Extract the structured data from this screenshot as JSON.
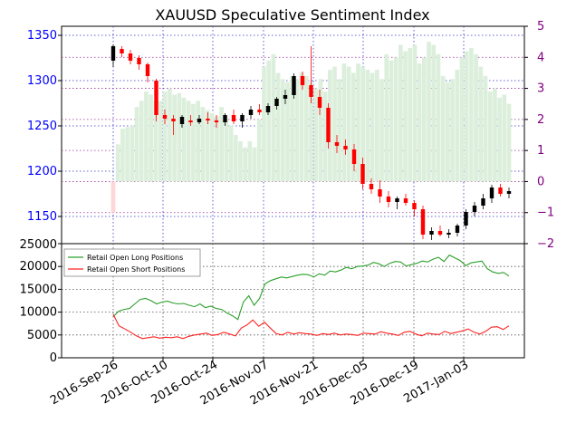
{
  "chart_data": [
    {
      "type": "candlestick",
      "title": "XAUUSD Speculative Sentiment Index",
      "left_axis": {
        "ticks": [
          "1150",
          "1200",
          "1250",
          "1300",
          "1350"
        ],
        "ylim": [
          1120,
          1360
        ],
        "color": "#0000ff"
      },
      "right_axis": {
        "ticks": [
          "−2",
          "−1",
          "0",
          "1",
          "2",
          "3",
          "4",
          "5"
        ],
        "ylim": [
          -2,
          5
        ],
        "color": "#800080"
      },
      "grid": "dotted",
      "ssi_bars": {
        "color_positive": "#dcefdc",
        "color_negative": "#ffd6d6",
        "values": [
          -1.0,
          1.2,
          1.7,
          1.75,
          1.8,
          2.4,
          2.6,
          2.9,
          2.8,
          2.6,
          2.6,
          2.9,
          3.0,
          2.8,
          2.85,
          2.7,
          2.6,
          2.5,
          2.6,
          2.4,
          2.3,
          2.2,
          2.1,
          2.4,
          2.0,
          1.8,
          1.5,
          1.3,
          1.1,
          1.3,
          1.1,
          2.0,
          3.7,
          3.9,
          4.1,
          3.5,
          3.3,
          3.2,
          3.4,
          3.3,
          3.5,
          3.4,
          3.2,
          3.0,
          3.3,
          2.9,
          3.6,
          3.7,
          3.3,
          3.8,
          3.7,
          3.5,
          3.8,
          3.7,
          3.6,
          3.5,
          3.6,
          3.3,
          4.1,
          3.9,
          4.0,
          4.4,
          4.2,
          4.3,
          4.4,
          3.8,
          4.0,
          4.5,
          4.4,
          4.1,
          3.4,
          3.2,
          3.3,
          3.6,
          4.0,
          4.2,
          4.3,
          4.1,
          3.7,
          3.4,
          2.9,
          3.0,
          2.7,
          2.8,
          2.5
        ]
      },
      "price_ohlc": [
        [
          1322,
          1340,
          1315,
          1338
        ],
        [
          1335,
          1338,
          1326,
          1330
        ],
        [
          1330,
          1334,
          1318,
          1322
        ],
        [
          1325,
          1328,
          1312,
          1318
        ],
        [
          1318,
          1320,
          1298,
          1305
        ],
        [
          1300,
          1302,
          1255,
          1262
        ],
        [
          1262,
          1268,
          1252,
          1258
        ],
        [
          1258,
          1262,
          1240,
          1255
        ],
        [
          1252,
          1262,
          1248,
          1260
        ],
        [
          1256,
          1262,
          1250,
          1254
        ],
        [
          1254,
          1262,
          1252,
          1258
        ],
        [
          1258,
          1265,
          1252,
          1256
        ],
        [
          1256,
          1262,
          1248,
          1254
        ],
        [
          1254,
          1264,
          1250,
          1262
        ],
        [
          1262,
          1268,
          1252,
          1255
        ],
        [
          1255,
          1264,
          1248,
          1262
        ],
        [
          1262,
          1272,
          1258,
          1268
        ],
        [
          1268,
          1274,
          1262,
          1265
        ],
        [
          1265,
          1275,
          1262,
          1272
        ],
        [
          1272,
          1282,
          1268,
          1280
        ],
        [
          1280,
          1290,
          1274,
          1284
        ],
        [
          1284,
          1308,
          1280,
          1305
        ],
        [
          1305,
          1310,
          1290,
          1295
        ],
        [
          1295,
          1338,
          1275,
          1282
        ],
        [
          1282,
          1290,
          1262,
          1270
        ],
        [
          1270,
          1275,
          1225,
          1232
        ],
        [
          1232,
          1240,
          1220,
          1228
        ],
        [
          1228,
          1235,
          1218,
          1224
        ],
        [
          1224,
          1230,
          1200,
          1208
        ],
        [
          1208,
          1215,
          1180,
          1186
        ],
        [
          1186,
          1192,
          1175,
          1180
        ],
        [
          1180,
          1190,
          1165,
          1172
        ],
        [
          1172,
          1178,
          1160,
          1166
        ],
        [
          1166,
          1172,
          1158,
          1170
        ],
        [
          1170,
          1175,
          1162,
          1165
        ],
        [
          1165,
          1168,
          1150,
          1158
        ],
        [
          1158,
          1162,
          1125,
          1130
        ],
        [
          1130,
          1138,
          1124,
          1134
        ],
        [
          1134,
          1140,
          1128,
          1130
        ],
        [
          1130,
          1136,
          1126,
          1132
        ],
        [
          1132,
          1142,
          1128,
          1140
        ],
        [
          1140,
          1158,
          1136,
          1155
        ],
        [
          1155,
          1166,
          1150,
          1162
        ],
        [
          1162,
          1175,
          1158,
          1170
        ],
        [
          1170,
          1185,
          1165,
          1182
        ],
        [
          1182,
          1186,
          1172,
          1175
        ],
        [
          1175,
          1182,
          1170,
          1178
        ]
      ]
    },
    {
      "type": "line",
      "y_ticks": [
        "0",
        "5000",
        "10000",
        "15000",
        "20000",
        "25000"
      ],
      "ylim": [
        0,
        25000
      ],
      "grid": "dotted",
      "x_ticks": [
        "2016-Sep-26",
        "2016-Oct-10",
        "2016-Oct-24",
        "2016-Nov-07",
        "2016-Nov-21",
        "2016-Dec-05",
        "2016-Dec-19",
        "2017-Jan-03"
      ],
      "legend": {
        "placement": "top-left",
        "entries": [
          "Retail Open Long Positions",
          "Retail Open Short Positions"
        ]
      },
      "series": [
        {
          "name": "Retail Open Long Positions",
          "color": "#2ca02c",
          "values": [
            9000,
            10200,
            10600,
            10800,
            11800,
            12800,
            13000,
            12500,
            11800,
            12200,
            12400,
            12000,
            11800,
            11900,
            11500,
            11200,
            11800,
            11000,
            11300,
            10800,
            10600,
            9800,
            9200,
            8400,
            12200,
            13600,
            11500,
            13000,
            16200,
            16900,
            17300,
            17700,
            17500,
            17800,
            18100,
            18300,
            18200,
            17700,
            18400,
            18100,
            19000,
            18800,
            19200,
            19800,
            19500,
            20000,
            20100,
            20300,
            20900,
            20600,
            20000,
            20700,
            21100,
            21000,
            20100,
            20400,
            20700,
            21200,
            21000,
            21600,
            22000,
            21100,
            22500,
            21900,
            21300,
            20200,
            20800,
            21000,
            21200,
            19500,
            18800,
            18500,
            18700,
            17900
          ]
        },
        {
          "name": "Retail Open Short Positions",
          "color": "#ff2020",
          "values": [
            9500,
            7000,
            6300,
            5600,
            4800,
            4200,
            4400,
            4600,
            4300,
            4500,
            4400,
            4600,
            4200,
            4700,
            5000,
            5200,
            5400,
            4900,
            5100,
            5600,
            5200,
            4800,
            6500,
            7200,
            8300,
            6900,
            7800,
            6500,
            5300,
            5000,
            5600,
            5200,
            5500,
            5300,
            5200,
            4900,
            5300,
            5100,
            5400,
            5000,
            5200,
            5100,
            4900,
            5400,
            5300,
            5200,
            5700,
            5400,
            5200,
            4900,
            5600,
            5800,
            5200,
            4800,
            5400,
            5200,
            5100,
            5800,
            5300,
            5600,
            5900,
            6300,
            5600,
            5200,
            5800,
            6700,
            6800,
            6200,
            7000
          ]
        }
      ]
    }
  ]
}
